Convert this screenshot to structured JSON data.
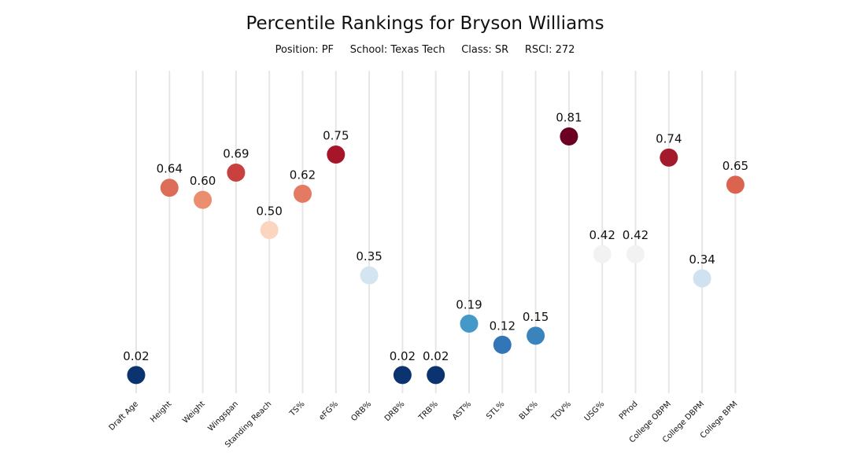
{
  "chart_data": {
    "type": "scatter",
    "title": "Percentile Rankings for Bryson Williams",
    "subtitle": {
      "position": "Position: PF",
      "school": "School: Texas Tech",
      "class": "Class: SR",
      "rsci": "RSCI: 272"
    },
    "ylim": [
      0,
      1
    ],
    "grid": "vertical",
    "categories": [
      "Draft Age",
      "Height",
      "Weight",
      "Wingspan",
      "Standing Reach",
      "TS%",
      "eFG%",
      "ORB%",
      "DRB%",
      "TRB%",
      "AST%",
      "STL%",
      "BLK%",
      "TOV%",
      "USG%",
      "PProd",
      "College OBPM",
      "College DBPM",
      "College BPM"
    ],
    "values": [
      0.02,
      0.64,
      0.6,
      0.69,
      0.5,
      0.62,
      0.75,
      0.35,
      0.02,
      0.02,
      0.19,
      0.12,
      0.15,
      0.81,
      0.42,
      0.42,
      0.74,
      0.34,
      0.65
    ],
    "value_labels": [
      "0.02",
      "0.64",
      "0.60",
      "0.69",
      "0.50",
      "0.62",
      "0.75",
      "0.35",
      "0.02",
      "0.02",
      "0.19",
      "0.12",
      "0.15",
      "0.81",
      "0.42",
      "0.42",
      "0.74",
      "0.34",
      "0.65"
    ],
    "colors": [
      "#0b3370",
      "#dd6d58",
      "#eb8d6f",
      "#c8413e",
      "#fcd5c0",
      "#e47a62",
      "#a6152a",
      "#d3e5f0",
      "#0b3370",
      "#0b3370",
      "#4599c8",
      "#3276b8",
      "#3a84be",
      "#6a0022",
      "#f2f2f2",
      "#f2f2f2",
      "#a31a2c",
      "#d0e2ef",
      "#db6451"
    ]
  }
}
